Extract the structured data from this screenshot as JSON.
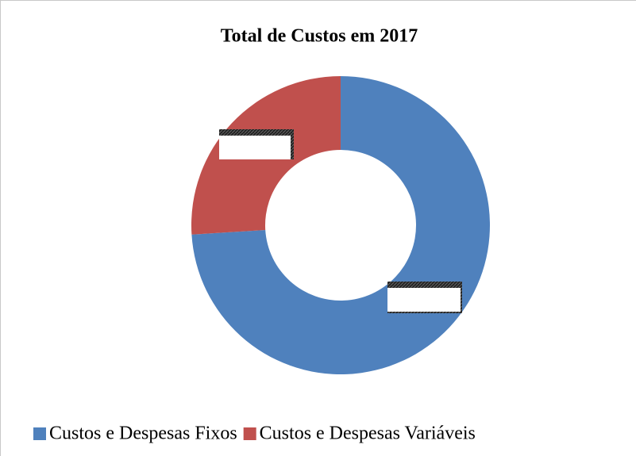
{
  "chart_data": {
    "type": "donut",
    "title": "Total de Custos em 2017",
    "categories": [
      "Custos e Despesas Fixos",
      "Custos e Despesas Variáveis"
    ],
    "values": [
      74,
      26
    ],
    "colors": [
      "#4f81bd",
      "#c0504d"
    ],
    "legend": "bottom"
  }
}
